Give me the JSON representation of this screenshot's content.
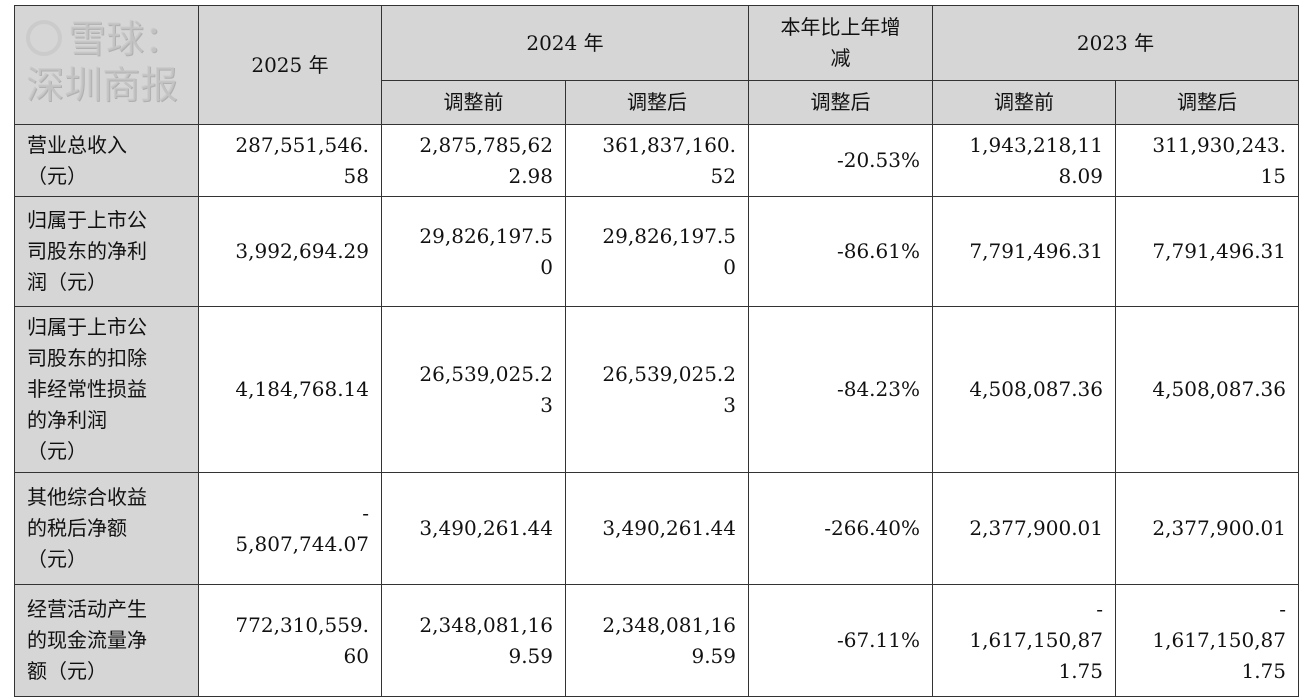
{
  "header": {
    "y2025": "2025 年",
    "y2024": "2024 年",
    "change": "本年比上年增\n减",
    "y2023": "2023 年",
    "before": "调整前",
    "after": "调整后"
  },
  "rows": [
    {
      "label": "营业总收入\n（元）",
      "v2025": "287,551,546.\n58",
      "v2024b": "2,875,785,62\n2.98",
      "v2024a": "361,837,160.\n52",
      "chg": "-20.53%",
      "v2023b": "1,943,218,11\n8.09",
      "v2023a": "311,930,243.\n15"
    },
    {
      "label": "归属于上市公\n司股东的净利\n润（元）",
      "v2025": "3,992,694.29",
      "v2024b": "29,826,197.5\n0",
      "v2024a": "29,826,197.5\n0",
      "chg": "-86.61%",
      "v2023b": "7,791,496.31",
      "v2023a": "7,791,496.31"
    },
    {
      "label": "归属于上市公\n司股东的扣除\n非经常性损益\n的净利润\n（元）",
      "v2025": "4,184,768.14",
      "v2024b": "26,539,025.2\n3",
      "v2024a": "26,539,025.2\n3",
      "chg": "-84.23%",
      "v2023b": "4,508,087.36",
      "v2023a": "4,508,087.36"
    },
    {
      "label": "其他综合收益\n的税后净额\n（元）",
      "v2025": "-\n5,807,744.07",
      "v2024b": "3,490,261.44",
      "v2024a": "3,490,261.44",
      "chg": "-266.40%",
      "v2023b": "2,377,900.01",
      "v2023a": "2,377,900.01"
    },
    {
      "label": "经营活动产生\n的现金流量净\n额（元）",
      "v2025": "772,310,559.\n60",
      "v2024b": "2,348,081,16\n9.59",
      "v2024a": "2,348,081,16\n9.59",
      "chg": "-67.11%",
      "v2023b": "-\n1,617,150,87\n1.75",
      "v2023a": "-\n1,617,150,87\n1.75"
    }
  ],
  "watermark": "雪球：深圳商报"
}
